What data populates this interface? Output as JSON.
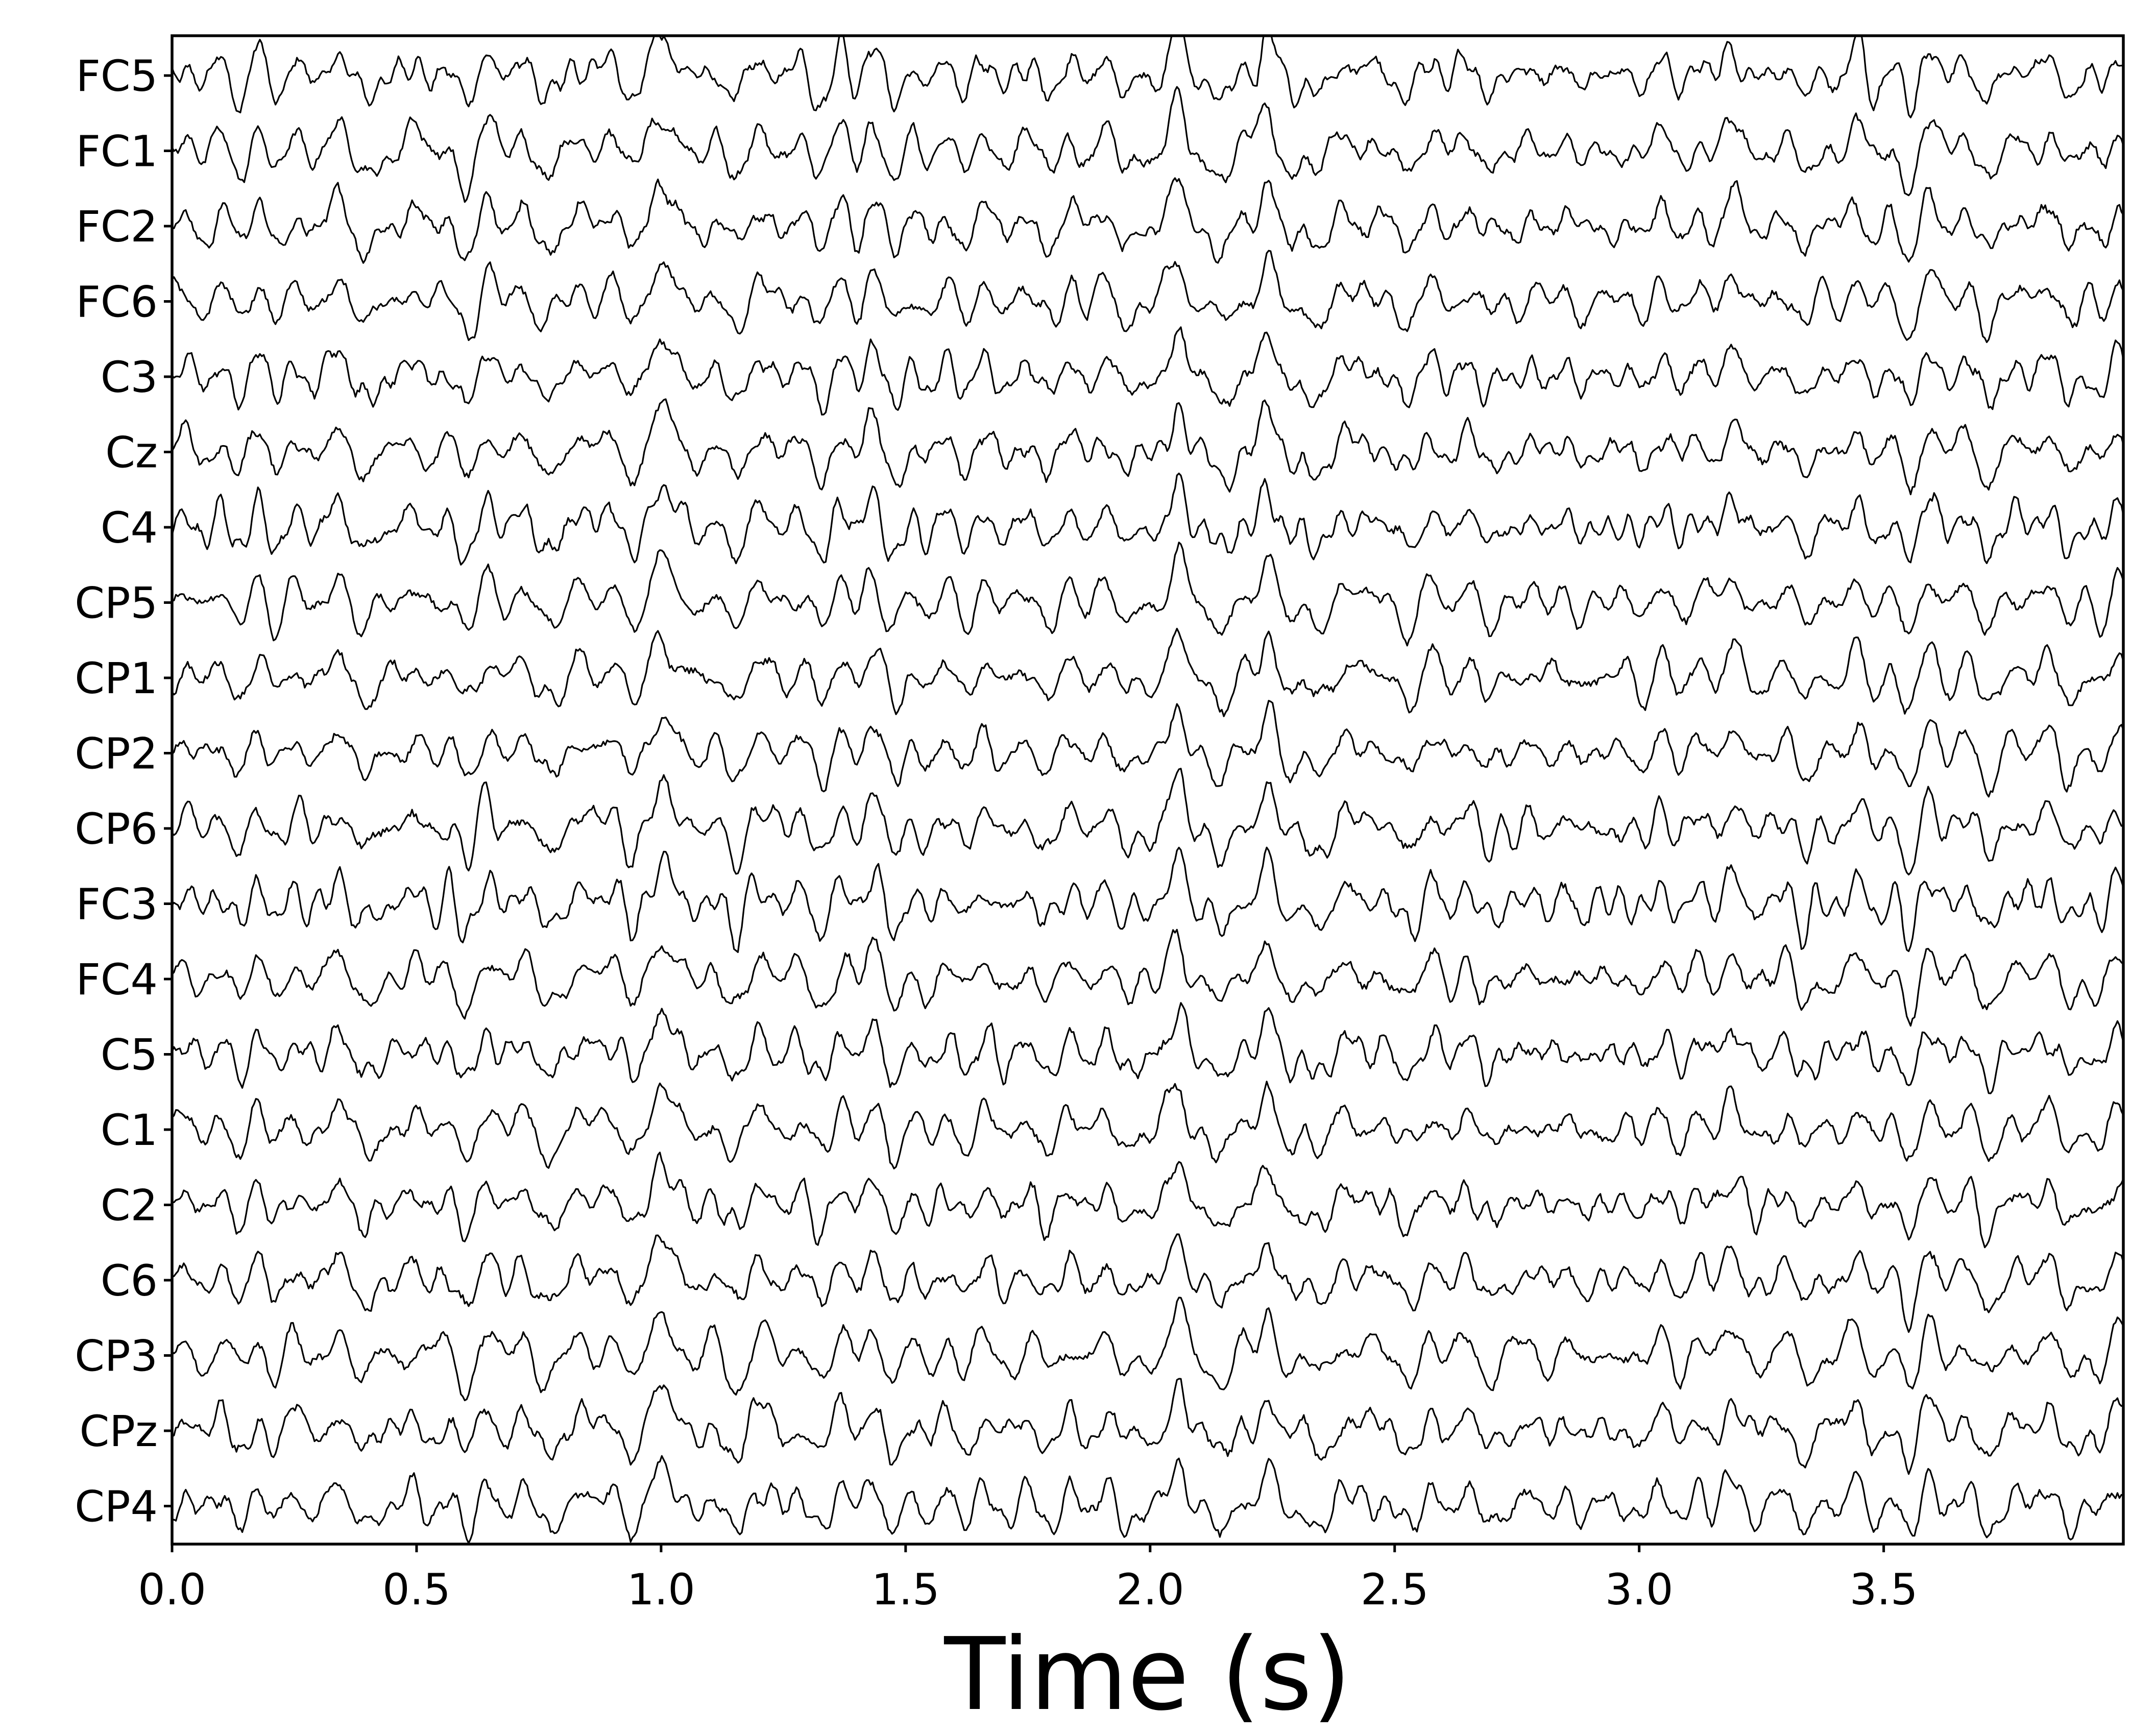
{
  "chart_data": {
    "type": "line",
    "title": "",
    "xlabel": "Time (s)",
    "ylabel": "",
    "xlim": [
      0.0,
      3.99
    ],
    "xticks": [
      0.0,
      0.5,
      1.0,
      1.5,
      2.0,
      2.5,
      3.0,
      3.5
    ],
    "xtick_labels": [
      "0.0",
      "0.5",
      "1.0",
      "1.5",
      "2.0",
      "2.5",
      "3.0",
      "3.5"
    ],
    "channels": [
      "FC5",
      "FC1",
      "FC2",
      "FC6",
      "C3",
      "Cz",
      "C4",
      "CP5",
      "CP1",
      "CP2",
      "CP6",
      "FC3",
      "FC4",
      "C5",
      "C1",
      "C2",
      "C6",
      "CP3",
      "CPz",
      "CP4"
    ],
    "grid": false,
    "legend": "none",
    "line_color": "#000000",
    "common_events_s": [
      0.34,
      1.0,
      1.42,
      2.06,
      2.24,
      3.18
    ]
  }
}
